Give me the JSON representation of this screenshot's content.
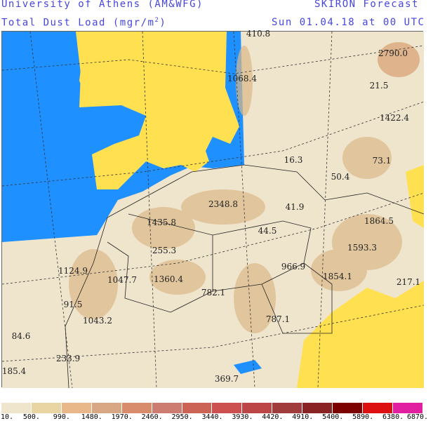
{
  "header": {
    "institution": "University of Athens (AM&WFG)",
    "product": "SKIRON Forecast",
    "title": "Total Dust Load (mgr/m",
    "title_sup": "2",
    "title_end": ")",
    "valid": "Sun 01.04.18 at 00 UTC"
  },
  "colors": {
    "ocean": "#1e90ff",
    "low_land": "#ffe050",
    "background": "#efe4cc",
    "header_text": "#4646e0"
  },
  "map_values": [
    "410.8",
    "1068.4",
    "2790.0",
    "21.5",
    "1422.4",
    "16.3",
    "73.1",
    "50.4",
    "2348.8",
    "41.9",
    "1435.8",
    "44.5",
    "1864.5",
    "255.3",
    "1593.3",
    "966.9",
    "1124.9",
    "1047.7",
    "1360.4",
    "1854.1",
    "217.1",
    "782.1",
    "91.5",
    "1043.2",
    "787.1",
    "84.6",
    "233.9",
    "185.4",
    "369.7"
  ],
  "legend": {
    "colors": [
      "#efe4cc",
      "#e9d4a4",
      "#e8b88a",
      "#d8a884",
      "#d88c6c",
      "#cc7c70",
      "#cc6455",
      "#cc5050",
      "#bc4646",
      "#a03c3c",
      "#8a2424",
      "#7c0000",
      "#dc1010",
      "#e020a0"
    ],
    "ticks": [
      "10.",
      "500.",
      "990.",
      "1480.",
      "1970.",
      "2460.",
      "2950.",
      "3440.",
      "3930.",
      "4420.",
      "4910.",
      "5400.",
      "5890.",
      "6380.",
      "6870."
    ]
  }
}
